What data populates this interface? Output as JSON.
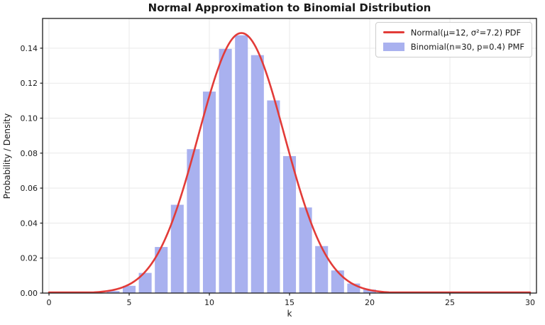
{
  "title": "Normal Approximation to Binomial Distribution",
  "axes": {
    "xlabel": "k",
    "ylabel": "Probability / Density",
    "x_ticks": [
      0,
      5,
      10,
      15,
      20,
      25,
      30
    ],
    "y_ticks": [
      0,
      0.02,
      0.04,
      0.06,
      0.08,
      0.1,
      0.12,
      0.14
    ],
    "y_tick_labels": [
      "0.00",
      "0.02",
      "0.04",
      "0.06",
      "0.08",
      "0.10",
      "0.12",
      "0.14"
    ],
    "xlim": [
      -0.4,
      30.4
    ],
    "ylim": [
      0,
      0.157
    ],
    "grid": true
  },
  "legend": {
    "position": "upper right",
    "entries": [
      {
        "type": "line",
        "color": "#e23b38",
        "label": "Normal(μ=12, σ²=7.2) PDF"
      },
      {
        "type": "patch",
        "color": "#a9b1ef",
        "label": "Binomial(n=30, p=0.4) PMF"
      }
    ]
  },
  "chart_data": [
    {
      "type": "bar",
      "name": "Binomial(n=30, p=0.4) PMF",
      "n": 30,
      "p": 0.4,
      "x": [
        0,
        1,
        2,
        3,
        4,
        5,
        6,
        7,
        8,
        9,
        10,
        11,
        12,
        13,
        14,
        15,
        16,
        17,
        18,
        19,
        20,
        21,
        22,
        23,
        24,
        25,
        26,
        27,
        28,
        29,
        30
      ],
      "values": [
        2e-07,
        4.4e-06,
        4.27e-05,
        0.000266,
        0.001196,
        0.004149,
        0.011525,
        0.026342,
        0.050489,
        0.082278,
        0.11519,
        0.139624,
        0.147381,
        0.136035,
        0.110131,
        0.078312,
        0.048945,
        0.026873,
        0.012935,
        0.005446,
        0.001997,
        0.000634,
        0.000173,
        4e-05,
        7.8e-06,
        1.3e-06,
        2e-07,
        0,
        0,
        0,
        0
      ],
      "bar_width": 0.8,
      "color": "#a9b1ef"
    },
    {
      "type": "line",
      "name": "Normal(μ=12, σ²=7.2) PDF",
      "mu": 12,
      "sigma2": 7.2,
      "x_range": [
        0,
        30
      ],
      "peak": 0.148676,
      "color": "#e23b38",
      "linewidth": 2.6
    }
  ],
  "colors": {
    "background": "#ffffff",
    "grid": "#e9e9e9",
    "spine": "#1a1a1a",
    "bar_fill": "#a9b1ef",
    "curve": "#e23b38",
    "text": "#1a1a1a"
  }
}
